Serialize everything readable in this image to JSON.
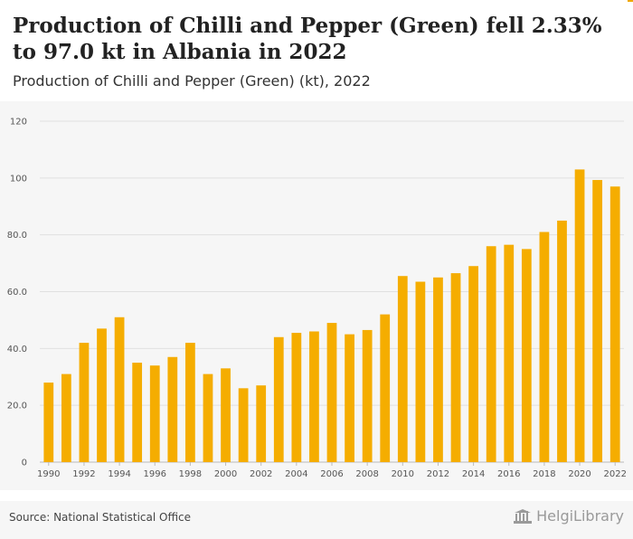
{
  "header": {
    "title": "Production of Chilli and Pepper (Green) fell 2.33% to 97.0 kt in Albania in 2022",
    "subtitle": "Production of Chilli and Pepper (Green) (kt), 2022"
  },
  "footer": {
    "source": "Source: National Statistical Office",
    "brand": "HelgiLibrary"
  },
  "colors": {
    "bar": "#f5ad00",
    "grid": "#e0e0e0",
    "background": "#f6f6f6"
  },
  "chart_data": {
    "type": "bar",
    "title": "Production of Chilli and Pepper (Green) (kt), 2022",
    "xlabel": "",
    "ylabel": "",
    "ylim": [
      0,
      120
    ],
    "yticks": [
      "0",
      "20.0",
      "40.0",
      "60.0",
      "80.0",
      "100",
      "120"
    ],
    "grid": true,
    "categories": [
      "1990",
      "1991",
      "1992",
      "1993",
      "1994",
      "1995",
      "1996",
      "1997",
      "1998",
      "1999",
      "2000",
      "2001",
      "2002",
      "2003",
      "2004",
      "2005",
      "2006",
      "2007",
      "2008",
      "2009",
      "2010",
      "2011",
      "2012",
      "2013",
      "2014",
      "2015",
      "2016",
      "2017",
      "2018",
      "2019",
      "2020",
      "2021",
      "2022"
    ],
    "xtick_labels": [
      "1990",
      "1992",
      "1994",
      "1996",
      "1998",
      "2000",
      "2002",
      "2004",
      "2006",
      "2008",
      "2010",
      "2012",
      "2014",
      "2016",
      "2018",
      "2020",
      "2022"
    ],
    "values": [
      28,
      31,
      42,
      47,
      51,
      35,
      34,
      37,
      42,
      31,
      33,
      26,
      27,
      44,
      45.5,
      46,
      49,
      45,
      46.5,
      52,
      65.5,
      63.5,
      65,
      66.5,
      69,
      76,
      76.5,
      75,
      81,
      85,
      103,
      99.3,
      97.0
    ]
  }
}
